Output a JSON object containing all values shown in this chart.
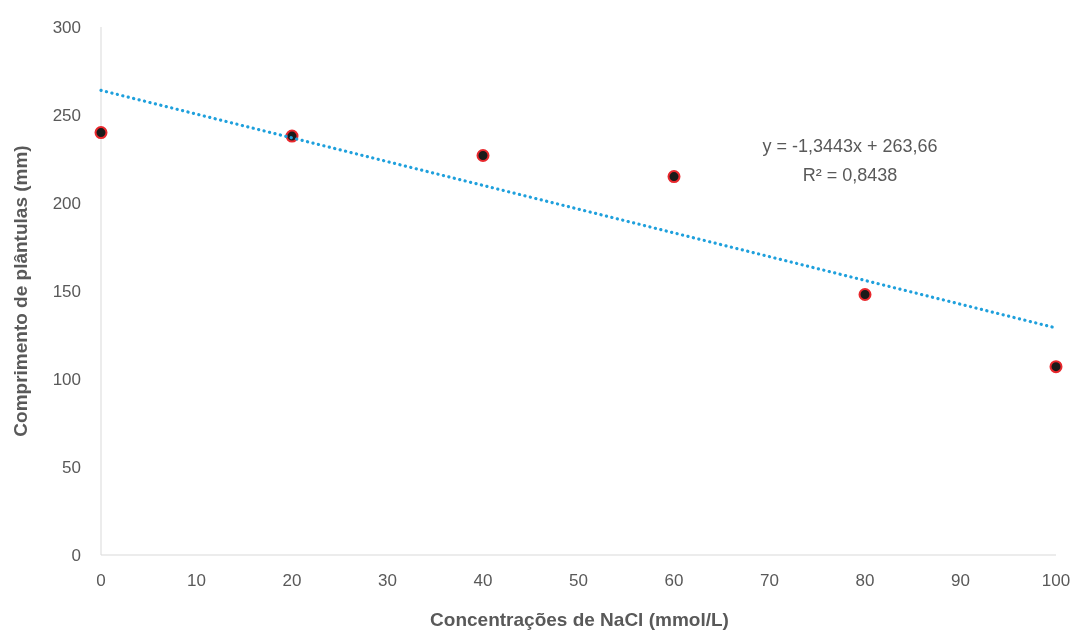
{
  "chart_data": {
    "type": "scatter",
    "xlabel": "Concentrações de NaCl (mmol/L)",
    "ylabel": "Comprimento de plântulas (mm)",
    "xlim": [
      0,
      100
    ],
    "xticks": [
      0,
      10,
      20,
      30,
      40,
      50,
      60,
      70,
      80,
      90,
      100
    ],
    "ylim": [
      0,
      300
    ],
    "yticks": [
      0,
      50,
      100,
      150,
      200,
      250,
      300
    ],
    "series": [
      {
        "color": "#1a1a1a",
        "x": [
          0,
          20,
          40,
          60,
          80,
          100
        ],
        "values": [
          240,
          238,
          227,
          215,
          148,
          107
        ],
        "marker": "circle"
      },
      {
        "type": "line",
        "color": "#1fa0dc",
        "x": [
          0,
          100
        ],
        "values": [
          264,
          129
        ],
        "line_style": "dotted",
        "marker": "none"
      }
    ],
    "annotations": [
      "y = -1,3443x + 263,66",
      "R² = 0,8438"
    ]
  }
}
